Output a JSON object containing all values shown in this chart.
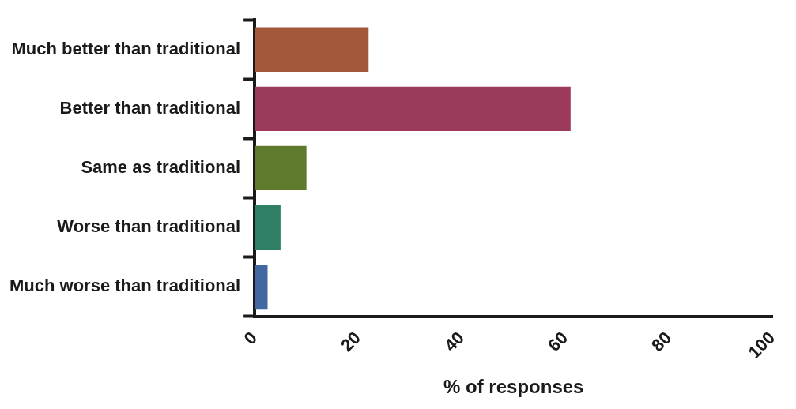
{
  "chart_data": {
    "type": "bar",
    "orientation": "horizontal",
    "xlabel": "% of responses",
    "categories": [
      "Much better than traditional",
      "Better than traditional",
      "Same as traditional",
      "Worse than traditional",
      "Much worse than traditional"
    ],
    "values": [
      22,
      61,
      10,
      5,
      2.5
    ],
    "colors": [
      "#a3573b",
      "#9c3a5c",
      "#5f7a2c",
      "#2e7f66",
      "#4368a1"
    ],
    "xlim": [
      0,
      100
    ],
    "xticks": [
      0,
      20,
      40,
      60,
      80,
      100
    ],
    "grid": false,
    "legend": false
  }
}
